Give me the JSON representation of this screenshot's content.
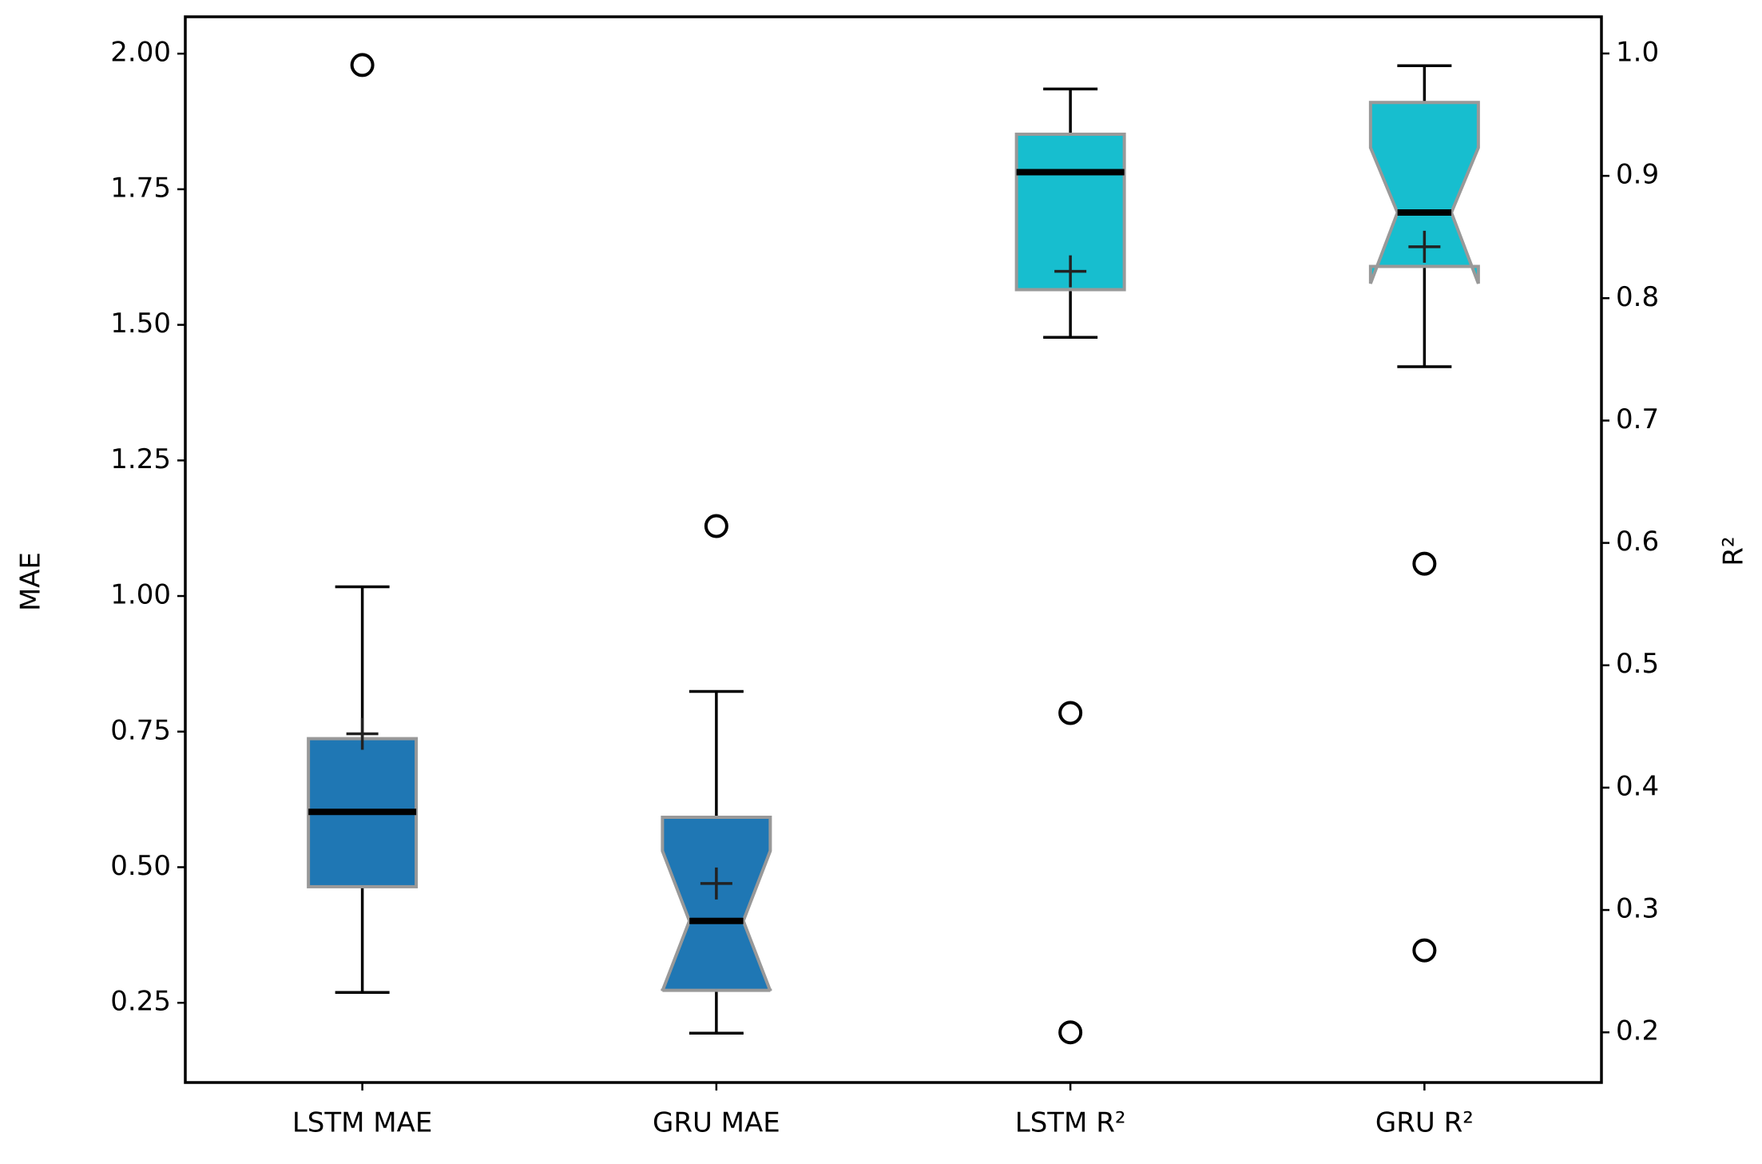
{
  "chart_data": {
    "type": "box",
    "categories": [
      "LSTM MAE",
      "GRU MAE",
      "LSTM R²",
      "GRU R²"
    ],
    "ylabel": "MAE",
    "y2label": "R²",
    "ylim": [
      0.103,
      2.068
    ],
    "yticks": [
      0.25,
      {
        "value": 0.5,
        "label": "0.50"
      },
      0.75,
      {
        "value": 1.0,
        "label": "1.00"
      },
      1.25,
      {
        "value": 1.5,
        "label": "1.50"
      },
      1.75,
      {
        "value": 2.0,
        "label": "2.00"
      }
    ],
    "y2lim": [
      0.159,
      1.03
    ],
    "y2ticks": [
      0.2,
      0.3,
      0.4,
      0.5,
      0.6,
      0.7,
      0.8,
      0.9,
      {
        "value": 1.0,
        "label": "1.0"
      }
    ],
    "edge_color": "#999999",
    "boxes": [
      {
        "color": "#1f77b4",
        "whislo": 0.269,
        "q1": 0.464,
        "med": 0.602,
        "q3": 0.737,
        "whishi": 1.017,
        "mean": 0.746,
        "fliers": [
          1.979
        ]
      },
      {
        "color": "#1f77b4",
        "whislo": 0.194,
        "q1": 0.273,
        "med": 0.401,
        "q3": 0.592,
        "whishi": 0.824,
        "mean": 0.47,
        "fliers": [
          1.129
        ],
        "notch": [
          0.272,
          0.53
        ]
      },
      {
        "color": "#17becf",
        "axis": "y2",
        "whislo": 0.768,
        "q1": 0.807,
        "med": 0.903,
        "q3": 0.934,
        "whishi": 0.971,
        "mean": 0.822,
        "fliers": [
          0.461,
          0.2
        ]
      },
      {
        "color": "#17becf",
        "axis": "y2",
        "whislo": 0.744,
        "q1": 0.826,
        "med": 0.87,
        "q3": 0.96,
        "whishi": 0.99,
        "mean": 0.842,
        "fliers": [
          0.583,
          0.267
        ],
        "notch": [
          0.812,
          0.923
        ]
      }
    ]
  }
}
